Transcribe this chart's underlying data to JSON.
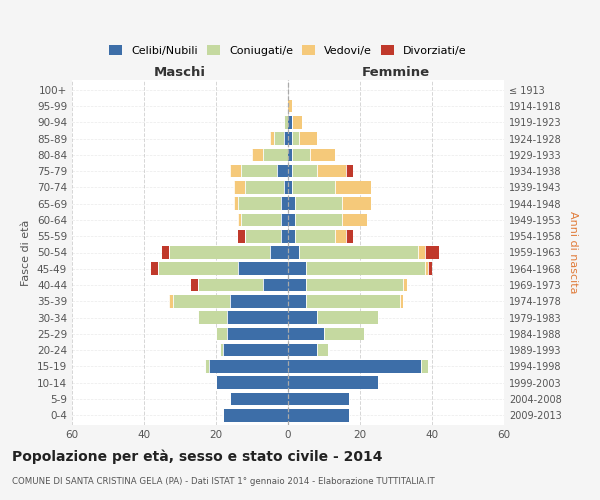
{
  "age_groups": [
    "0-4",
    "5-9",
    "10-14",
    "15-19",
    "20-24",
    "25-29",
    "30-34",
    "35-39",
    "40-44",
    "45-49",
    "50-54",
    "55-59",
    "60-64",
    "65-69",
    "70-74",
    "75-79",
    "80-84",
    "85-89",
    "90-94",
    "95-99",
    "100+"
  ],
  "birth_years": [
    "2009-2013",
    "2004-2008",
    "1999-2003",
    "1994-1998",
    "1989-1993",
    "1984-1988",
    "1979-1983",
    "1974-1978",
    "1969-1973",
    "1964-1968",
    "1959-1963",
    "1954-1958",
    "1949-1953",
    "1944-1948",
    "1939-1943",
    "1934-1938",
    "1929-1933",
    "1924-1928",
    "1919-1923",
    "1914-1918",
    "≤ 1913"
  ],
  "maschi": {
    "celibi": [
      18,
      16,
      20,
      22,
      18,
      17,
      17,
      16,
      7,
      14,
      5,
      2,
      2,
      2,
      1,
      3,
      0,
      1,
      0,
      0,
      0
    ],
    "coniugati": [
      0,
      0,
      0,
      1,
      1,
      3,
      8,
      16,
      18,
      22,
      28,
      10,
      11,
      12,
      11,
      10,
      7,
      3,
      1,
      0,
      0
    ],
    "vedovi": [
      0,
      0,
      0,
      0,
      0,
      0,
      0,
      1,
      0,
      0,
      0,
      0,
      1,
      1,
      3,
      3,
      3,
      1,
      0,
      0,
      0
    ],
    "divorziati": [
      0,
      0,
      0,
      0,
      0,
      0,
      0,
      0,
      2,
      2,
      2,
      2,
      0,
      0,
      0,
      0,
      0,
      0,
      0,
      0,
      0
    ]
  },
  "femmine": {
    "nubili": [
      17,
      17,
      25,
      37,
      8,
      10,
      8,
      5,
      5,
      5,
      3,
      2,
      2,
      2,
      1,
      1,
      1,
      1,
      1,
      0,
      0
    ],
    "coniugate": [
      0,
      0,
      0,
      2,
      3,
      11,
      17,
      26,
      27,
      33,
      33,
      11,
      13,
      13,
      12,
      7,
      5,
      2,
      0,
      0,
      0
    ],
    "vedove": [
      0,
      0,
      0,
      0,
      0,
      0,
      0,
      1,
      1,
      1,
      2,
      3,
      7,
      8,
      10,
      8,
      7,
      5,
      3,
      1,
      0
    ],
    "divorziate": [
      0,
      0,
      0,
      0,
      0,
      0,
      0,
      0,
      0,
      1,
      4,
      2,
      0,
      0,
      0,
      2,
      0,
      0,
      0,
      0,
      0
    ]
  },
  "colors": {
    "celibi": "#3d6ea8",
    "coniugati": "#c5d9a0",
    "vedovi": "#f5c97a",
    "divorziati": "#c0392b"
  },
  "xlim": 60,
  "title": "Popolazione per età, sesso e stato civile - 2014",
  "subtitle": "COMUNE DI SANTA CRISTINA GELA (PA) - Dati ISTAT 1° gennaio 2014 - Elaborazione TUTTITALIA.IT",
  "ylabel_left": "Fasce di età",
  "ylabel_right": "Anni di nascita",
  "label_maschi": "Maschi",
  "label_femmine": "Femmine",
  "legend_labels": [
    "Celibi/Nubili",
    "Coniugati/e",
    "Vedovi/e",
    "Divorziati/e"
  ],
  "bg_color": "#f5f5f5",
  "plot_bg": "#ffffff",
  "grid_color": "#cccccc"
}
